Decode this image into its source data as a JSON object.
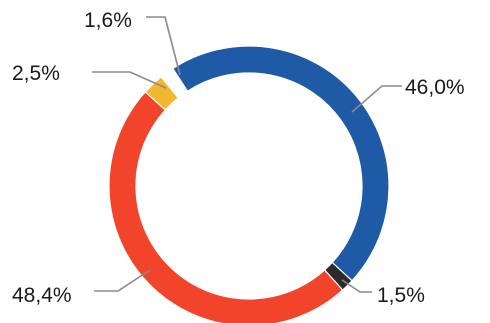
{
  "chart_data": {
    "type": "pie",
    "variant": "donut",
    "title": "",
    "values": [
      46.0,
      1.5,
      48.4,
      2.5,
      1.6
    ],
    "labels": [
      "46,0%",
      "1,5%",
      "48,4%",
      "2,5%",
      "1,6%"
    ],
    "colors": [
      "#1f5aa6",
      "#2b2b2b",
      "#f2442a",
      "#f2b731",
      "#ffffff"
    ],
    "slice_outline": "#1a1a1a",
    "legend": "none",
    "grid": false
  }
}
